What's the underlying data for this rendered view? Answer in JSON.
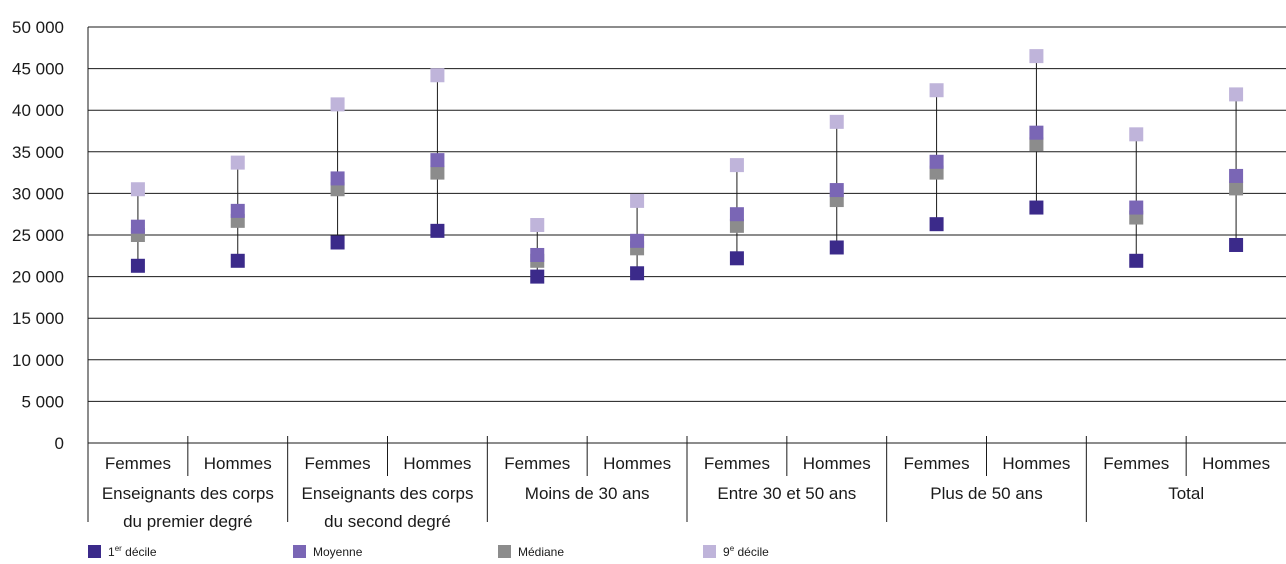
{
  "chart_data": {
    "type": "scatter",
    "title": "",
    "xlabel": "",
    "ylabel": "",
    "ylim": [
      0,
      50000
    ],
    "yticks": [
      0,
      5000,
      10000,
      15000,
      20000,
      25000,
      30000,
      35000,
      40000,
      45000,
      50000
    ],
    "ytick_labels": [
      "0",
      "5 000",
      "10 000",
      "15 000",
      "20 000",
      "25 000",
      "30 000",
      "35 000",
      "40 000",
      "45 000",
      "50 000"
    ],
    "grid": "horizontal",
    "legend_position": "bottom",
    "groups": [
      {
        "label_line1": "Enseignants des corps",
        "label_line2": "du premier degré"
      },
      {
        "label_line1": "Enseignants des corps",
        "label_line2": "du second degré"
      },
      {
        "label_line1": "Moins de 30 ans",
        "label_line2": ""
      },
      {
        "label_line1": "Entre 30 et 50 ans",
        "label_line2": ""
      },
      {
        "label_line1": "Plus de 50 ans",
        "label_line2": ""
      },
      {
        "label_line1": "Total",
        "label_line2": ""
      }
    ],
    "categories": [
      "Femmes",
      "Hommes",
      "Femmes",
      "Hommes",
      "Femmes",
      "Hommes",
      "Femmes",
      "Hommes",
      "Femmes",
      "Hommes",
      "Femmes",
      "Hommes"
    ],
    "series": [
      {
        "legend_main": "1",
        "legend_sup": "er",
        "legend_rest": " décile",
        "color": "#3b2a8a",
        "values": [
          21300,
          21900,
          24100,
          25500,
          20000,
          20400,
          22200,
          23500,
          26300,
          28300,
          21900,
          23800
        ]
      },
      {
        "legend_main": "Moyenne",
        "legend_sup": "",
        "legend_rest": "",
        "color": "#7a66b5",
        "values": [
          26000,
          27900,
          31800,
          34000,
          22600,
          24300,
          27500,
          30400,
          33800,
          37300,
          28300,
          32100
        ]
      },
      {
        "legend_main": "Médiane",
        "legend_sup": "",
        "legend_rest": "",
        "color": "#8c8c8c",
        "values": [
          25000,
          26700,
          30500,
          32500,
          21900,
          23400,
          26100,
          29200,
          32500,
          35900,
          27100,
          30600
        ]
      },
      {
        "legend_main": "9",
        "legend_sup": "e",
        "legend_rest": " décile",
        "color": "#bfb4da",
        "values": [
          30500,
          33700,
          40700,
          44200,
          26200,
          29100,
          33400,
          38600,
          42400,
          46500,
          37100,
          41900
        ]
      }
    ]
  }
}
